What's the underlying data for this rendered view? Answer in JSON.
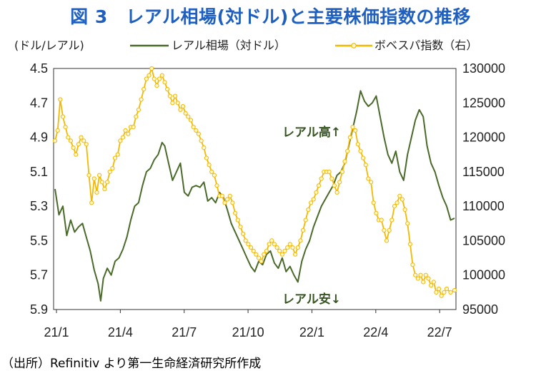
{
  "title": "図 3　レアル相場(対ドル)と主要株価指数の推移",
  "source": "（出所）Refinitiv より第一生命経済研究所作成",
  "chart_data": {
    "type": "line",
    "x_tick_labels": [
      "21/1",
      "21/4",
      "21/7",
      "21/10",
      "22/1",
      "22/4",
      "22/7"
    ],
    "left_axis": {
      "label": "(ドル/レアル)",
      "ylim": [
        4.5,
        5.9
      ],
      "inverted": true,
      "ticks": [
        "4.5",
        "4.7",
        "4.9",
        "5.1",
        "5.3",
        "5.5",
        "5.7",
        "5.9"
      ]
    },
    "right_axis": {
      "label": "",
      "ylim": [
        95000,
        130000
      ],
      "ticks": [
        "130000",
        "125000",
        "120000",
        "115000",
        "110000",
        "105000",
        "100000",
        "95000"
      ]
    },
    "annotations": {
      "up": "レアル高↑",
      "down": "レアル安↓"
    },
    "series": [
      {
        "name": "レアル相場（対ドル）",
        "axis": "left",
        "color": "#4a6a2a",
        "points": [
          [
            0,
            5.2
          ],
          [
            3,
            5.35
          ],
          [
            6,
            5.3
          ],
          [
            9,
            5.47
          ],
          [
            12,
            5.38
          ],
          [
            15,
            5.45
          ],
          [
            18,
            5.42
          ],
          [
            21,
            5.4
          ],
          [
            24,
            5.48
          ],
          [
            27,
            5.56
          ],
          [
            30,
            5.67
          ],
          [
            33,
            5.75
          ],
          [
            35,
            5.85
          ],
          [
            37,
            5.72
          ],
          [
            40,
            5.66
          ],
          [
            43,
            5.7
          ],
          [
            46,
            5.62
          ],
          [
            49,
            5.6
          ],
          [
            52,
            5.55
          ],
          [
            55,
            5.48
          ],
          [
            58,
            5.38
          ],
          [
            61,
            5.3
          ],
          [
            64,
            5.28
          ],
          [
            67,
            5.18
          ],
          [
            70,
            5.1
          ],
          [
            73,
            5.08
          ],
          [
            76,
            5.03
          ],
          [
            79,
            5.0
          ],
          [
            82,
            4.93
          ],
          [
            84,
            4.95
          ],
          [
            87,
            5.05
          ],
          [
            90,
            5.15
          ],
          [
            93,
            5.1
          ],
          [
            96,
            5.05
          ],
          [
            99,
            5.22
          ],
          [
            102,
            5.24
          ],
          [
            105,
            5.19
          ],
          [
            108,
            5.18
          ],
          [
            111,
            5.19
          ],
          [
            114,
            5.16
          ],
          [
            117,
            5.27
          ],
          [
            120,
            5.25
          ],
          [
            123,
            5.28
          ],
          [
            126,
            5.22
          ],
          [
            129,
            5.25
          ],
          [
            132,
            5.32
          ],
          [
            135,
            5.4
          ],
          [
            138,
            5.45
          ],
          [
            141,
            5.5
          ],
          [
            144,
            5.55
          ],
          [
            147,
            5.6
          ],
          [
            150,
            5.65
          ],
          [
            153,
            5.68
          ],
          [
            156,
            5.62
          ],
          [
            159,
            5.64
          ],
          [
            162,
            5.58
          ],
          [
            165,
            5.56
          ],
          [
            168,
            5.63
          ],
          [
            171,
            5.66
          ],
          [
            174,
            5.6
          ],
          [
            177,
            5.68
          ],
          [
            180,
            5.65
          ],
          [
            183,
            5.7
          ],
          [
            186,
            5.74
          ],
          [
            189,
            5.62
          ],
          [
            192,
            5.55
          ],
          [
            195,
            5.5
          ],
          [
            198,
            5.42
          ],
          [
            201,
            5.36
          ],
          [
            204,
            5.3
          ],
          [
            207,
            5.26
          ],
          [
            210,
            5.22
          ],
          [
            213,
            5.18
          ],
          [
            216,
            5.12
          ],
          [
            219,
            5.1
          ],
          [
            222,
            5.05
          ],
          [
            225,
            4.95
          ],
          [
            228,
            4.85
          ],
          [
            231,
            4.75
          ],
          [
            234,
            4.63
          ],
          [
            237,
            4.69
          ],
          [
            240,
            4.72
          ],
          [
            243,
            4.7
          ],
          [
            246,
            4.66
          ],
          [
            249,
            4.78
          ],
          [
            252,
            4.9
          ],
          [
            255,
            5.0
          ],
          [
            258,
            5.05
          ],
          [
            261,
            4.98
          ],
          [
            264,
            5.1
          ],
          [
            267,
            5.15
          ],
          [
            270,
            5.0
          ],
          [
            273,
            4.9
          ],
          [
            276,
            4.8
          ],
          [
            279,
            4.74
          ],
          [
            282,
            4.78
          ],
          [
            285,
            4.95
          ],
          [
            288,
            5.05
          ],
          [
            291,
            5.1
          ],
          [
            294,
            5.18
          ],
          [
            297,
            5.25
          ],
          [
            300,
            5.3
          ],
          [
            303,
            5.38
          ],
          [
            306,
            5.37
          ]
        ]
      },
      {
        "name": "ボベスパ指数（右）",
        "axis": "right",
        "color": "#f5b800",
        "points": [
          [
            0,
            119500
          ],
          [
            2,
            121000
          ],
          [
            4,
            125500
          ],
          [
            6,
            123000
          ],
          [
            8,
            121500
          ],
          [
            10,
            120000
          ],
          [
            12,
            119500
          ],
          [
            14,
            118500
          ],
          [
            16,
            117500
          ],
          [
            18,
            119000
          ],
          [
            20,
            120000
          ],
          [
            22,
            119500
          ],
          [
            24,
            119000
          ],
          [
            26,
            114500
          ],
          [
            28,
            110500
          ],
          [
            30,
            114000
          ],
          [
            32,
            112000
          ],
          [
            34,
            114500
          ],
          [
            36,
            113500
          ],
          [
            38,
            112500
          ],
          [
            40,
            113500
          ],
          [
            42,
            115000
          ],
          [
            44,
            115500
          ],
          [
            46,
            117000
          ],
          [
            48,
            117500
          ],
          [
            50,
            119500
          ],
          [
            52,
            120000
          ],
          [
            54,
            121000
          ],
          [
            56,
            120500
          ],
          [
            58,
            121500
          ],
          [
            60,
            121500
          ],
          [
            62,
            123000
          ],
          [
            64,
            124000
          ],
          [
            66,
            125500
          ],
          [
            68,
            127000
          ],
          [
            70,
            128500
          ],
          [
            72,
            129000
          ],
          [
            74,
            130000
          ],
          [
            76,
            128500
          ],
          [
            78,
            127500
          ],
          [
            80,
            128500
          ],
          [
            82,
            129000
          ],
          [
            84,
            128000
          ],
          [
            86,
            127000
          ],
          [
            88,
            126000
          ],
          [
            90,
            125000
          ],
          [
            92,
            126000
          ],
          [
            94,
            125000
          ],
          [
            96,
            124000
          ],
          [
            98,
            124500
          ],
          [
            100,
            123500
          ],
          [
            102,
            123000
          ],
          [
            104,
            122500
          ],
          [
            106,
            121500
          ],
          [
            108,
            121000
          ],
          [
            110,
            120500
          ],
          [
            112,
            119500
          ],
          [
            114,
            118500
          ],
          [
            116,
            117000
          ],
          [
            118,
            116000
          ],
          [
            120,
            115000
          ],
          [
            122,
            114500
          ],
          [
            124,
            113000
          ],
          [
            126,
            111500
          ],
          [
            128,
            111500
          ],
          [
            130,
            110500
          ],
          [
            132,
            111000
          ],
          [
            134,
            111500
          ],
          [
            136,
            110500
          ],
          [
            138,
            109000
          ],
          [
            140,
            108000
          ],
          [
            142,
            107000
          ],
          [
            144,
            106000
          ],
          [
            146,
            105000
          ],
          [
            148,
            104500
          ],
          [
            150,
            104000
          ],
          [
            152,
            103500
          ],
          [
            154,
            103000
          ],
          [
            156,
            102500
          ],
          [
            158,
            102000
          ],
          [
            160,
            103000
          ],
          [
            162,
            103500
          ],
          [
            164,
            104500
          ],
          [
            166,
            105000
          ],
          [
            168,
            104500
          ],
          [
            170,
            104000
          ],
          [
            172,
            103500
          ],
          [
            174,
            103000
          ],
          [
            176,
            103500
          ],
          [
            178,
            104000
          ],
          [
            180,
            104500
          ],
          [
            182,
            104000
          ],
          [
            184,
            103000
          ],
          [
            186,
            104000
          ],
          [
            188,
            105000
          ],
          [
            190,
            106500
          ],
          [
            192,
            108000
          ],
          [
            194,
            109500
          ],
          [
            196,
            110500
          ],
          [
            198,
            111000
          ],
          [
            200,
            112000
          ],
          [
            202,
            113000
          ],
          [
            204,
            114000
          ],
          [
            206,
            115000
          ],
          [
            208,
            115000
          ],
          [
            210,
            115000
          ],
          [
            212,
            114000
          ],
          [
            214,
            113000
          ],
          [
            216,
            112000
          ],
          [
            218,
            113500
          ],
          [
            220,
            115000
          ],
          [
            222,
            116500
          ],
          [
            224,
            118000
          ],
          [
            226,
            120000
          ],
          [
            228,
            121500
          ],
          [
            230,
            121000
          ],
          [
            232,
            119000
          ],
          [
            234,
            118000
          ],
          [
            236,
            117000
          ],
          [
            238,
            116000
          ],
          [
            240,
            114000
          ],
          [
            242,
            113500
          ],
          [
            244,
            110500
          ],
          [
            246,
            109000
          ],
          [
            248,
            108000
          ],
          [
            250,
            108000
          ],
          [
            252,
            106500
          ],
          [
            254,
            105000
          ],
          [
            256,
            106500
          ],
          [
            258,
            108000
          ],
          [
            260,
            110000
          ],
          [
            262,
            110500
          ],
          [
            264,
            111500
          ],
          [
            266,
            111000
          ],
          [
            268,
            109500
          ],
          [
            270,
            107500
          ],
          [
            272,
            104500
          ],
          [
            274,
            101500
          ],
          [
            276,
            100000
          ],
          [
            278,
            99500
          ],
          [
            280,
            100000
          ],
          [
            282,
            99000
          ],
          [
            284,
            100000
          ],
          [
            286,
            99500
          ],
          [
            288,
            98500
          ],
          [
            290,
            99000
          ],
          [
            292,
            97500
          ],
          [
            294,
            98000
          ],
          [
            296,
            97000
          ],
          [
            298,
            97500
          ],
          [
            300,
            98000
          ],
          [
            303,
            97500
          ],
          [
            306,
            97800
          ]
        ]
      }
    ]
  }
}
